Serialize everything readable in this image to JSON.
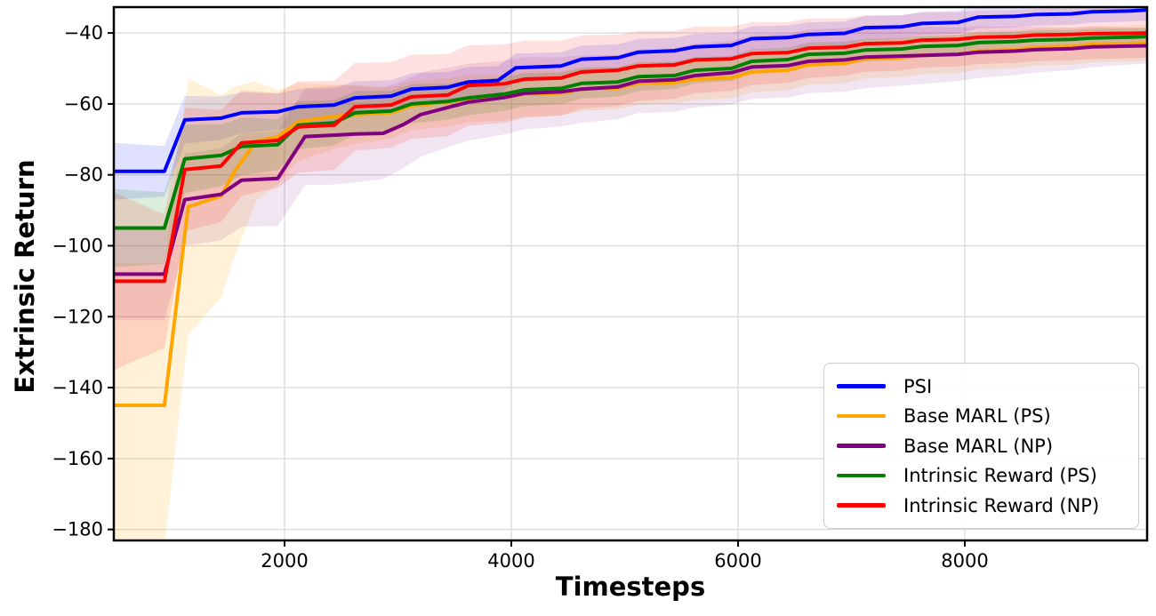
{
  "chart_data": {
    "type": "line",
    "title": "",
    "xlabel": "Timesteps",
    "ylabel": "Extrinsic Return",
    "xlim": [
      494,
      9608
    ],
    "ylim": [
      -183.1,
      -32.7
    ],
    "xticks": [
      2000,
      4000,
      6000,
      8000
    ],
    "yticks": [
      -40,
      -60,
      -80,
      -100,
      -120,
      -140,
      -160,
      -180
    ],
    "grid": true,
    "grid_color": "#d9d9d9",
    "spine_color": "#000000",
    "background": "#ffffff",
    "legend_position": "lower right",
    "series": [
      {
        "name": "PSI",
        "color": "#0000ff",
        "band_opacity": 0.12,
        "x": [
          500,
          940,
          1120,
          1440,
          1620,
          1940,
          2120,
          2440,
          2620,
          2940,
          3120,
          3440,
          3620,
          3880,
          4040,
          4440,
          4620,
          4940,
          5120,
          5440,
          5620,
          5940,
          6120,
          6440,
          6620,
          6940,
          7120,
          7440,
          7620,
          7940,
          8120,
          8440,
          8620,
          8940,
          9120,
          9440,
          9600
        ],
        "y": [
          -79,
          -79,
          -64.5,
          -64,
          -62.5,
          -62.2,
          -60.8,
          -60.3,
          -58.3,
          -57.8,
          -55.8,
          -55.3,
          -53.8,
          -53.4,
          -49.8,
          -49.3,
          -47.4,
          -47,
          -45.4,
          -45,
          -43.9,
          -43.5,
          -41.6,
          -41.3,
          -40.4,
          -40.1,
          -38.5,
          -38.3,
          -37.3,
          -37,
          -35.5,
          -35.3,
          -34.8,
          -34.6,
          -34,
          -33.8,
          -33.5
        ],
        "band": [
          [
            500,
            8
          ],
          [
            1000,
            7
          ],
          [
            2000,
            5
          ],
          [
            4000,
            4
          ],
          [
            6000,
            3.5
          ],
          [
            9600,
            3
          ]
        ]
      },
      {
        "name": "Base MARL (PS)",
        "color": "#ffa500",
        "band_opacity": 0.15,
        "x": [
          500,
          940,
          1150,
          1440,
          1560,
          1750,
          1940,
          2120,
          2440,
          2620,
          2940,
          3120,
          3440,
          3620,
          3940,
          4120,
          4440,
          4620,
          4940,
          5120,
          5440,
          5620,
          5940,
          6120,
          6440,
          6620,
          6940,
          7120,
          7440,
          7620,
          7940,
          8120,
          8440,
          8620,
          8940,
          9120,
          9440,
          9600
        ],
        "y": [
          -145,
          -145,
          -89,
          -86,
          -79,
          -70.5,
          -69.3,
          -65,
          -63.5,
          -63,
          -62.5,
          -60.5,
          -59.5,
          -58.5,
          -58.2,
          -57.2,
          -57,
          -55.8,
          -55.5,
          -54.2,
          -54,
          -53,
          -52.7,
          -51,
          -50.5,
          -49,
          -48.6,
          -47.3,
          -47,
          -46.2,
          -46,
          -45,
          -44.7,
          -44,
          -43.8,
          -43.2,
          -43,
          -42.8
        ],
        "band": [
          [
            500,
            40
          ],
          [
            1000,
            40
          ],
          [
            1400,
            30
          ],
          [
            1800,
            15
          ],
          [
            2200,
            10
          ],
          [
            3000,
            7
          ],
          [
            5000,
            6
          ],
          [
            9600,
            5
          ]
        ]
      },
      {
        "name": "Base MARL (NP)",
        "color": "#800080",
        "band_opacity": 0.1,
        "x": [
          500,
          940,
          1120,
          1440,
          1620,
          1940,
          2180,
          2440,
          2620,
          2870,
          3050,
          3200,
          3440,
          3620,
          3940,
          4120,
          4440,
          4620,
          4940,
          5120,
          5440,
          5620,
          5940,
          6120,
          6440,
          6620,
          6940,
          7120,
          7440,
          7940,
          8120,
          8440,
          8620,
          8940,
          9120,
          9440,
          9600
        ],
        "y": [
          -108,
          -108,
          -87,
          -85.5,
          -81.5,
          -81,
          -69.2,
          -68.8,
          -68.5,
          -68.3,
          -65.8,
          -63,
          -61,
          -59.5,
          -58.2,
          -57,
          -56.6,
          -55.8,
          -55.2,
          -53.6,
          -53.2,
          -52,
          -51.2,
          -49.6,
          -49.2,
          -48,
          -47.6,
          -46.8,
          -46.5,
          -46,
          -45.4,
          -45.1,
          -44.7,
          -44.4,
          -43.9,
          -43.7,
          -43.6
        ],
        "band": [
          [
            500,
            13
          ],
          [
            1500,
            13
          ],
          [
            2500,
            14
          ],
          [
            3500,
            11
          ],
          [
            5000,
            9
          ],
          [
            7000,
            9
          ],
          [
            9600,
            5
          ]
        ]
      },
      {
        "name": "Intrinsic Reward (PS)",
        "color": "#008000",
        "band_opacity": 0.14,
        "x": [
          500,
          940,
          1120,
          1440,
          1620,
          1940,
          2120,
          2440,
          2620,
          2940,
          3120,
          3440,
          3620,
          3940,
          4120,
          4440,
          4620,
          4940,
          5120,
          5440,
          5620,
          5940,
          6120,
          6440,
          6620,
          6940,
          7120,
          7440,
          7620,
          7940,
          8120,
          8440,
          8620,
          8940,
          9120,
          9440,
          9600
        ],
        "y": [
          -95,
          -95,
          -75.5,
          -74.5,
          -72,
          -71.5,
          -66,
          -65.3,
          -62.5,
          -62,
          -60,
          -59.3,
          -58.3,
          -57.2,
          -56,
          -55.6,
          -54.2,
          -53.8,
          -52.3,
          -52,
          -50.5,
          -50,
          -48,
          -47.5,
          -46,
          -45.7,
          -44.8,
          -44.5,
          -43.8,
          -43.5,
          -42.7,
          -42.4,
          -42,
          -41.8,
          -41.4,
          -41.2,
          -41
        ],
        "band": [
          [
            500,
            11
          ],
          [
            1000,
            10
          ],
          [
            2000,
            7
          ],
          [
            3500,
            5
          ],
          [
            6000,
            3.5
          ],
          [
            9600,
            2.5
          ]
        ]
      },
      {
        "name": "Intrinsic Reward (NP)",
        "color": "#ff0000",
        "band_opacity": 0.12,
        "x": [
          500,
          940,
          1120,
          1440,
          1620,
          1940,
          2120,
          2440,
          2620,
          2940,
          3120,
          3440,
          3620,
          3940,
          4120,
          4440,
          4620,
          4940,
          5120,
          5440,
          5620,
          5940,
          6120,
          6440,
          6620,
          6940,
          7120,
          7440,
          7620,
          7940,
          8120,
          8440,
          8620,
          8940,
          9120,
          9440,
          9600
        ],
        "y": [
          -110,
          -110,
          -78.5,
          -77.5,
          -71,
          -70.3,
          -66.5,
          -66,
          -60.8,
          -60.3,
          -58,
          -57.5,
          -54.8,
          -54.3,
          -53,
          -52.7,
          -51,
          -50.5,
          -49.3,
          -49,
          -47.6,
          -47.3,
          -45.8,
          -45.5,
          -44.3,
          -44,
          -43,
          -42.8,
          -42,
          -41.8,
          -41.2,
          -41,
          -40.6,
          -40.4,
          -40.2,
          -40.1,
          -40
        ],
        "band": [
          [
            500,
            25
          ],
          [
            1000,
            18
          ],
          [
            2000,
            13
          ],
          [
            3000,
            12
          ],
          [
            5000,
            10
          ],
          [
            7000,
            8
          ],
          [
            9600,
            7
          ]
        ]
      }
    ]
  }
}
